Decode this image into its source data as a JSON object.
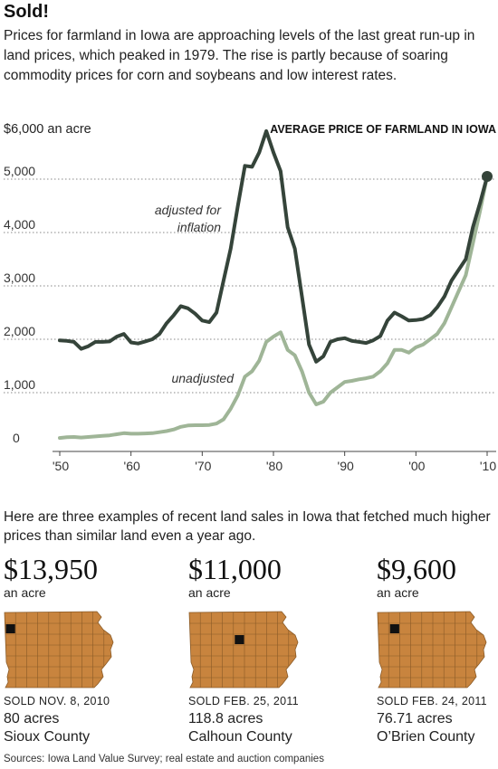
{
  "headline": "Sold!",
  "intro": "Prices for farmland in Iowa are approaching levels of the last great run-up in land prices, which peaked in 1979. The rise is partly because of soaring commodity prices for corn and soybeans and low interest rates.",
  "colors": {
    "adjusted": "#35443a",
    "unadjusted": "#9fb597",
    "map_fill": "#c8843e",
    "map_line": "#8a5a26",
    "marker": "#111111",
    "grid": "#888888"
  },
  "chart_data": {
    "type": "line",
    "title": "AVERAGE PRICE OF FARMLAND IN IOWA",
    "ylabel": "$6,000 an acre",
    "y_ticks": [
      {
        "value": 5000,
        "label": "5,000"
      },
      {
        "value": 4000,
        "label": "4,000"
      },
      {
        "value": 3000,
        "label": "3,000"
      },
      {
        "value": 2000,
        "label": "2,000"
      },
      {
        "value": 1000,
        "label": "1,000"
      },
      {
        "value": 0,
        "label": "0"
      }
    ],
    "x_ticks": [
      {
        "value": 1950,
        "label": "'50"
      },
      {
        "value": 1960,
        "label": "'60"
      },
      {
        "value": 1970,
        "label": "'70"
      },
      {
        "value": 1980,
        "label": "'80"
      },
      {
        "value": 1990,
        "label": "'90"
      },
      {
        "value": 2000,
        "label": "'00"
      },
      {
        "value": 2010,
        "label": "'10"
      }
    ],
    "xlim": [
      1950,
      2010
    ],
    "ylim": [
      0,
      6000
    ],
    "grid": "horizontal dotted",
    "series": [
      {
        "name": "adjusted for inflation",
        "x": [
          1950,
          1951,
          1952,
          1953,
          1954,
          1955,
          1956,
          1957,
          1958,
          1959,
          1960,
          1961,
          1962,
          1963,
          1964,
          1965,
          1966,
          1967,
          1968,
          1969,
          1970,
          1971,
          1972,
          1973,
          1974,
          1975,
          1976,
          1977,
          1978,
          1979,
          1980,
          1981,
          1982,
          1983,
          1984,
          1985,
          1986,
          1987,
          1988,
          1989,
          1990,
          1991,
          1992,
          1993,
          1994,
          1995,
          1996,
          1997,
          1998,
          1999,
          2000,
          2001,
          2002,
          2003,
          2004,
          2005,
          2006,
          2007,
          2008,
          2009,
          2010
        ],
        "values": [
          1980,
          1970,
          1950,
          1820,
          1870,
          1950,
          1950,
          1960,
          2050,
          2100,
          1940,
          1920,
          1960,
          2000,
          2100,
          2300,
          2450,
          2620,
          2580,
          2480,
          2350,
          2320,
          2500,
          3100,
          3700,
          4500,
          5250,
          5230,
          5500,
          5900,
          5500,
          5150,
          4100,
          3700,
          2800,
          1900,
          1580,
          1680,
          1950,
          2000,
          2020,
          1970,
          1950,
          1930,
          1980,
          2060,
          2350,
          2500,
          2430,
          2350,
          2360,
          2380,
          2450,
          2600,
          2800,
          3100,
          3300,
          3500,
          4100,
          4550,
          5050
        ]
      },
      {
        "name": "unadjusted",
        "x": [
          1950,
          1951,
          1952,
          1953,
          1954,
          1955,
          1956,
          1957,
          1958,
          1959,
          1960,
          1961,
          1962,
          1963,
          1964,
          1965,
          1966,
          1967,
          1968,
          1969,
          1970,
          1971,
          1972,
          1973,
          1974,
          1975,
          1976,
          1977,
          1978,
          1979,
          1980,
          1981,
          1982,
          1983,
          1984,
          1985,
          1986,
          1987,
          1988,
          1989,
          1990,
          1991,
          1992,
          1993,
          1994,
          1995,
          1996,
          1997,
          1998,
          1999,
          2000,
          2001,
          2002,
          2003,
          2004,
          2005,
          2006,
          2007,
          2008,
          2009,
          2010
        ],
        "values": [
          150,
          165,
          170,
          160,
          170,
          180,
          190,
          200,
          220,
          240,
          230,
          230,
          235,
          240,
          260,
          280,
          310,
          360,
          385,
          390,
          390,
          395,
          420,
          500,
          700,
          950,
          1300,
          1400,
          1600,
          1950,
          2050,
          2130,
          1800,
          1700,
          1400,
          1000,
          780,
          830,
          1000,
          1100,
          1200,
          1220,
          1250,
          1270,
          1300,
          1400,
          1550,
          1800,
          1800,
          1750,
          1850,
          1900,
          2000,
          2100,
          2300,
          2600,
          2900,
          3200,
          3800,
          4400,
          5050
        ]
      }
    ],
    "series_labels": {
      "adjusted_line1": "adjusted for",
      "adjusted_line2": "inflation",
      "unadjusted": "unadjusted"
    }
  },
  "sales_intro": "Here are three examples of recent land sales in Iowa that fetched much higher prices than similar land even a year ago.",
  "sales": [
    {
      "price": "$13,950",
      "unit": "an acre",
      "sold": "SOLD  NOV. 8, 2010",
      "acres": "80 acres",
      "county": "Sioux County"
    },
    {
      "price": "$11,000",
      "unit": "an acre",
      "sold": "SOLD  FEB. 25, 2011",
      "acres": "118.8 acres",
      "county": "Calhoun County"
    },
    {
      "price": "$9,600",
      "unit": "an acre",
      "sold": "SOLD  FEB. 24, 2011",
      "acres": "76.71 acres",
      "county": "O’Brien County"
    }
  ],
  "source": "Sources: Iowa Land Value Survey; real estate and auction companies"
}
